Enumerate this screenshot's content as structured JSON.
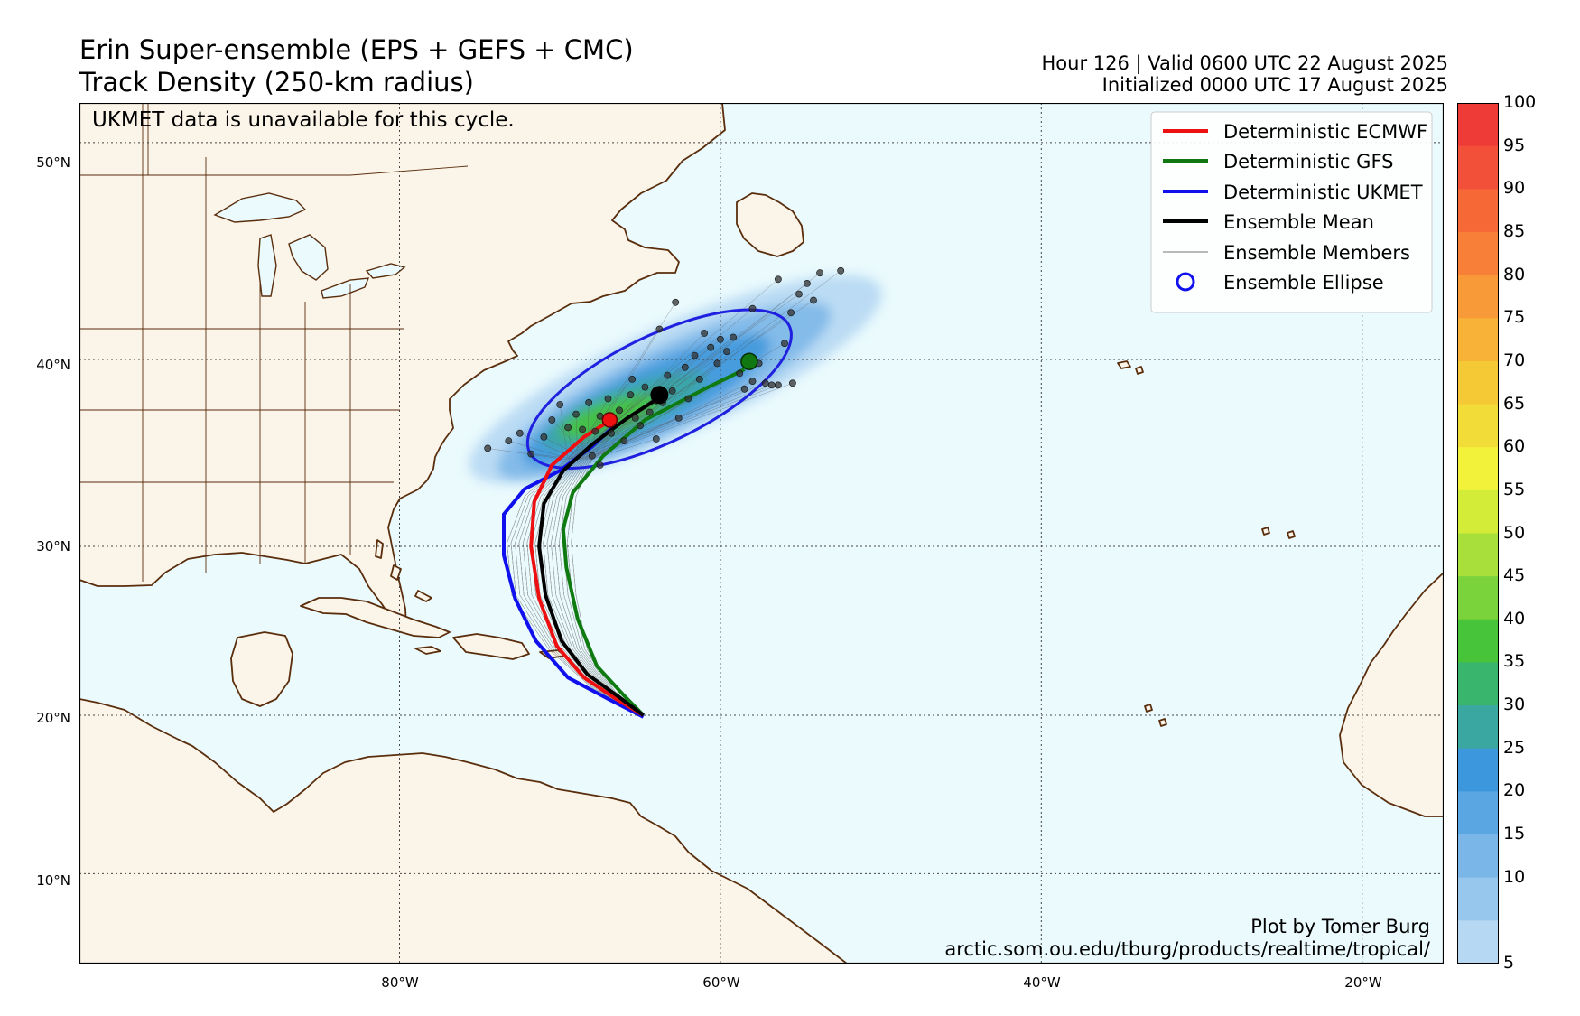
{
  "header": {
    "title_line1": "Erin Super-ensemble (EPS + GEFS + CMC)",
    "title_line2": "Track Density (250-km radius)",
    "valid": "Hour 126 | Valid 0600 UTC 22 August 2025",
    "initialized": "Initialized 0000 UTC 17 August 2025"
  },
  "map": {
    "note": "UKMET data is unavailable for this cycle.",
    "credit_line1": "Plot by Tomer Burg",
    "credit_line2": "arctic.som.ou.edu/tburg/products/realtime/tropical/",
    "lat_labels": [
      "50°N",
      "40°N",
      "30°N",
      "20°N",
      "10°N"
    ],
    "lon_labels": [
      "80°W",
      "60°W",
      "40°W",
      "20°W"
    ],
    "land_color": "#fbf4e8",
    "ocean_color": "#eafafd",
    "coast_color": "#5a2d0c"
  },
  "legend": {
    "items": [
      {
        "label": "Deterministic ECMWF",
        "color": "#ee1111"
      },
      {
        "label": "Deterministic GFS",
        "color": "#117711"
      },
      {
        "label": "Deterministic UKMET",
        "color": "#1111ee"
      },
      {
        "label": "Ensemble Mean",
        "color": "#000000"
      },
      {
        "label": "Ensemble Members",
        "color": "#444444"
      },
      {
        "label": "Ensemble Ellipse",
        "color": "#1111ee"
      }
    ]
  },
  "colorbar": {
    "ticks": [
      "100",
      "95",
      "90",
      "85",
      "80",
      "75",
      "70",
      "65",
      "60",
      "55",
      "50",
      "45",
      "40",
      "35",
      "30",
      "25",
      "20",
      "15",
      "10",
      "5"
    ],
    "colors": [
      "#ef3b37",
      "#f3503a",
      "#f76837",
      "#f87f38",
      "#f89a38",
      "#f7b237",
      "#f5c836",
      "#f2dc37",
      "#f2f23a",
      "#d3ec38",
      "#a8df3a",
      "#7ad33a",
      "#48c43a",
      "#3ab56e",
      "#3aa7a0",
      "#3d97dc",
      "#5aa6e3",
      "#7ab6e8",
      "#98c7ee",
      "#b6d8f3"
    ]
  },
  "tracks": {
    "ecmwf": [
      [
        -64.8,
        20.0
      ],
      [
        -66.5,
        21.0
      ],
      [
        -68.5,
        22.3
      ],
      [
        -70.2,
        24.2
      ],
      [
        -71.3,
        27.0
      ],
      [
        -71.8,
        30.0
      ],
      [
        -71.6,
        32.5
      ],
      [
        -70.5,
        34.5
      ],
      [
        -68.5,
        36.0
      ],
      [
        -67.2,
        36.7
      ]
    ],
    "gfs": [
      [
        -64.8,
        20.0
      ],
      [
        -66.0,
        21.2
      ],
      [
        -67.7,
        23.0
      ],
      [
        -68.9,
        25.8
      ],
      [
        -69.6,
        28.8
      ],
      [
        -69.8,
        31.0
      ],
      [
        -69.2,
        33.0
      ],
      [
        -67.3,
        35.0
      ],
      [
        -64.7,
        36.9
      ],
      [
        -61.0,
        38.5
      ],
      [
        -58.5,
        39.5
      ]
    ],
    "ukmet": [
      [
        -64.8,
        19.9
      ],
      [
        -67.0,
        21.0
      ],
      [
        -69.5,
        22.3
      ],
      [
        -71.5,
        24.5
      ],
      [
        -72.8,
        27.0
      ],
      [
        -73.5,
        29.5
      ],
      [
        -73.5,
        31.8
      ],
      [
        -72.2,
        33.2
      ],
      [
        -70.0,
        34.2
      ],
      [
        -68.0,
        35.5
      ],
      [
        -66.6,
        36.6
      ]
    ],
    "mean": [
      [
        -64.8,
        20.0
      ],
      [
        -66.3,
        21.1
      ],
      [
        -68.3,
        22.5
      ],
      [
        -69.9,
        24.5
      ],
      [
        -70.9,
        27.2
      ],
      [
        -71.3,
        30.0
      ],
      [
        -71.0,
        32.4
      ],
      [
        -69.8,
        34.2
      ],
      [
        -68.0,
        35.6
      ],
      [
        -65.8,
        37.0
      ],
      [
        -63.9,
        38.0
      ]
    ],
    "ellipse": {
      "lon": -63.8,
      "lat": 38.5,
      "rx": 9.0,
      "ry": 3.3,
      "rot": -26
    },
    "ecmwf_end": [
      -66.9,
      36.9
    ],
    "gfs_end": [
      -58.2,
      39.9
    ],
    "mean_end": [
      -63.8,
      38.2
    ],
    "member_ends": [
      [
        -74.5,
        35.4
      ],
      [
        -73.2,
        35.8
      ],
      [
        -72.5,
        36.2
      ],
      [
        -71.8,
        35.1
      ],
      [
        -71.0,
        36.0
      ],
      [
        -70.5,
        36.9
      ],
      [
        -70.0,
        37.7
      ],
      [
        -69.5,
        36.5
      ],
      [
        -69.0,
        37.2
      ],
      [
        -68.6,
        36.4
      ],
      [
        -68.2,
        37.8
      ],
      [
        -67.8,
        36.3
      ],
      [
        -67.5,
        37.1
      ],
      [
        -67.0,
        38.0
      ],
      [
        -66.8,
        36.2
      ],
      [
        -66.3,
        37.4
      ],
      [
        -66.0,
        35.8
      ],
      [
        -65.6,
        38.2
      ],
      [
        -65.3,
        37.0
      ],
      [
        -65.0,
        36.6
      ],
      [
        -64.7,
        38.6
      ],
      [
        -64.4,
        37.3
      ],
      [
        -64.0,
        35.9
      ],
      [
        -63.6,
        37.8
      ],
      [
        -63.3,
        39.2
      ],
      [
        -63.0,
        38.4
      ],
      [
        -62.6,
        37.0
      ],
      [
        -62.2,
        39.6
      ],
      [
        -62.0,
        38.0
      ],
      [
        -61.6,
        40.2
      ],
      [
        -61.3,
        39.0
      ],
      [
        -61.0,
        41.3
      ],
      [
        -60.6,
        40.6
      ],
      [
        -60.2,
        39.8
      ],
      [
        -60.0,
        41.0
      ],
      [
        -59.6,
        40.4
      ],
      [
        -59.2,
        41.1
      ],
      [
        -58.8,
        39.3
      ],
      [
        -58.5,
        38.5
      ],
      [
        -58.0,
        38.9
      ],
      [
        -57.6,
        39.8
      ],
      [
        -57.2,
        38.8
      ],
      [
        -56.8,
        38.7
      ],
      [
        -56.4,
        38.7
      ],
      [
        -56.0,
        40.8
      ],
      [
        -55.6,
        42.3
      ],
      [
        -55.1,
        43.2
      ],
      [
        -54.6,
        43.7
      ],
      [
        -54.2,
        42.9
      ],
      [
        -53.8,
        44.2
      ],
      [
        -52.5,
        44.3
      ],
      [
        -56.4,
        43.9
      ],
      [
        -58.0,
        42.5
      ],
      [
        -62.8,
        42.8
      ],
      [
        -63.8,
        41.5
      ],
      [
        -55.5,
        38.8
      ],
      [
        -67.5,
        34.5
      ],
      [
        -65.5,
        39.0
      ],
      [
        -68.0,
        35.0
      ],
      [
        -64.0,
        37.9
      ]
    ]
  }
}
